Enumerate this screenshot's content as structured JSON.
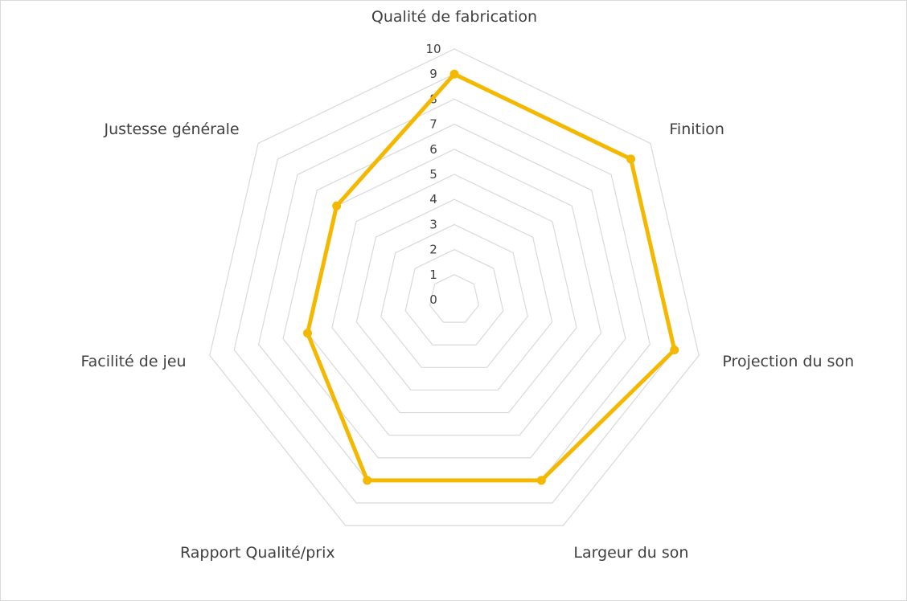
{
  "chart_data": {
    "type": "radar",
    "title": "",
    "categories": [
      "Qualité de fabrication",
      "Finition",
      "Projection du son",
      "Largeur du son",
      "Rapport Qualité/prix",
      "Facilité de jeu",
      "Justesse générale"
    ],
    "series": [
      {
        "values": [
          9,
          9,
          9,
          8,
          8,
          6,
          6
        ]
      }
    ],
    "radial_axis": {
      "min": 0,
      "max": 10,
      "step": 1,
      "tick_labels": [
        "0",
        "1",
        "2",
        "3",
        "4",
        "5",
        "6",
        "7",
        "8",
        "9",
        "10"
      ]
    },
    "grid": true,
    "legend": "none",
    "colors": {
      "series": "#F5B800",
      "grid": "#d9d9d9",
      "text": "#404040",
      "border": "#d9d9d9"
    }
  }
}
